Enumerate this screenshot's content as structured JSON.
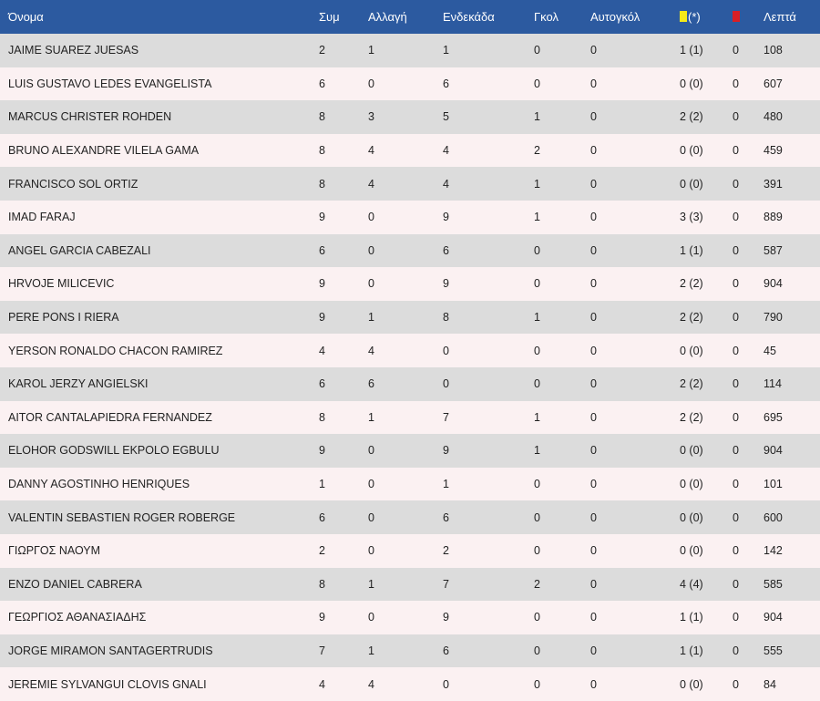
{
  "headers": {
    "name": "Όνομα",
    "apps": "Συμ",
    "subs": "Αλλαγή",
    "starts": "Ενδεκάδα",
    "goals": "Γκολ",
    "own_goals": "Αυτογκόλ",
    "yellow_suffix": "(*)",
    "minutes": "Λεπτά"
  },
  "icons": {
    "yellow": "yellow-card-icon",
    "red": "red-card-icon"
  },
  "colors": {
    "header": "#2c5aa0",
    "row_odd": "#dcdcdc",
    "row_even": "#fbf1f2",
    "yellow": "#f5ea19",
    "red": "#d81f26"
  },
  "players": [
    {
      "name": "JAIME SUAREZ JUESAS",
      "apps": "2",
      "subs": "1",
      "starts": "1",
      "goals": "0",
      "own_goals": "0",
      "yellow": "1 (1)",
      "red": "0",
      "minutes": "108"
    },
    {
      "name": "LUIS GUSTAVO LEDES EVANGELISTA",
      "apps": "6",
      "subs": "0",
      "starts": "6",
      "goals": "0",
      "own_goals": "0",
      "yellow": "0 (0)",
      "red": "0",
      "minutes": "607"
    },
    {
      "name": "MARCUS CHRISTER ROHDEN",
      "apps": "8",
      "subs": "3",
      "starts": "5",
      "goals": "1",
      "own_goals": "0",
      "yellow": "2 (2)",
      "red": "0",
      "minutes": "480"
    },
    {
      "name": "BRUNO ALEXANDRE VILELA GAMA",
      "apps": "8",
      "subs": "4",
      "starts": "4",
      "goals": "2",
      "own_goals": "0",
      "yellow": "0 (0)",
      "red": "0",
      "minutes": "459"
    },
    {
      "name": "FRANCISCO SOL ORTIZ",
      "apps": "8",
      "subs": "4",
      "starts": "4",
      "goals": "1",
      "own_goals": "0",
      "yellow": "0 (0)",
      "red": "0",
      "minutes": "391"
    },
    {
      "name": "IMAD FARAJ",
      "apps": "9",
      "subs": "0",
      "starts": "9",
      "goals": "1",
      "own_goals": "0",
      "yellow": "3 (3)",
      "red": "0",
      "minutes": "889"
    },
    {
      "name": "ANGEL GARCIA CABEZALI",
      "apps": "6",
      "subs": "0",
      "starts": "6",
      "goals": "0",
      "own_goals": "0",
      "yellow": "1 (1)",
      "red": "0",
      "minutes": "587"
    },
    {
      "name": "HRVOJE MILICEVIC",
      "apps": "9",
      "subs": "0",
      "starts": "9",
      "goals": "0",
      "own_goals": "0",
      "yellow": "2 (2)",
      "red": "0",
      "minutes": "904"
    },
    {
      "name": "PERE PONS I RIERA",
      "apps": "9",
      "subs": "1",
      "starts": "8",
      "goals": "1",
      "own_goals": "0",
      "yellow": "2 (2)",
      "red": "0",
      "minutes": "790"
    },
    {
      "name": "YERSON RONALDO CHACON RAMIREZ",
      "apps": "4",
      "subs": "4",
      "starts": "0",
      "goals": "0",
      "own_goals": "0",
      "yellow": "0 (0)",
      "red": "0",
      "minutes": "45"
    },
    {
      "name": "KAROL JERZY ANGIELSKI",
      "apps": "6",
      "subs": "6",
      "starts": "0",
      "goals": "0",
      "own_goals": "0",
      "yellow": "2 (2)",
      "red": "0",
      "minutes": "114"
    },
    {
      "name": "AITOR CANTALAPIEDRA FERNANDEZ",
      "apps": "8",
      "subs": "1",
      "starts": "7",
      "goals": "1",
      "own_goals": "0",
      "yellow": "2 (2)",
      "red": "0",
      "minutes": "695"
    },
    {
      "name": "ELOHOR GODSWILL EKPOLO EGBULU",
      "apps": "9",
      "subs": "0",
      "starts": "9",
      "goals": "1",
      "own_goals": "0",
      "yellow": "0 (0)",
      "red": "0",
      "minutes": "904"
    },
    {
      "name": "DANNY AGOSTINHO HENRIQUES",
      "apps": "1",
      "subs": "0",
      "starts": "1",
      "goals": "0",
      "own_goals": "0",
      "yellow": "0 (0)",
      "red": "0",
      "minutes": "101"
    },
    {
      "name": "VALENTIN SEBASTIEN ROGER ROBERGE",
      "apps": "6",
      "subs": "0",
      "starts": "6",
      "goals": "0",
      "own_goals": "0",
      "yellow": "0 (0)",
      "red": "0",
      "minutes": "600"
    },
    {
      "name": "ΓΙΩΡΓΟΣ ΝΑΟΥΜ",
      "apps": "2",
      "subs": "0",
      "starts": "2",
      "goals": "0",
      "own_goals": "0",
      "yellow": "0 (0)",
      "red": "0",
      "minutes": "142"
    },
    {
      "name": "ENZO DANIEL CABRERA",
      "apps": "8",
      "subs": "1",
      "starts": "7",
      "goals": "2",
      "own_goals": "0",
      "yellow": "4 (4)",
      "red": "0",
      "minutes": "585"
    },
    {
      "name": "ΓΕΩΡΓΙΟΣ ΑΘΑΝΑΣΙΑΔΗΣ",
      "apps": "9",
      "subs": "0",
      "starts": "9",
      "goals": "0",
      "own_goals": "0",
      "yellow": "1 (1)",
      "red": "0",
      "minutes": "904"
    },
    {
      "name": "JORGE MIRAMON SANTAGERTRUDIS",
      "apps": "7",
      "subs": "1",
      "starts": "6",
      "goals": "0",
      "own_goals": "0",
      "yellow": "1 (1)",
      "red": "0",
      "minutes": "555"
    },
    {
      "name": "JEREMIE SYLVANGUI CLOVIS GNALI",
      "apps": "4",
      "subs": "4",
      "starts": "0",
      "goals": "0",
      "own_goals": "0",
      "yellow": "0 (0)",
      "red": "0",
      "minutes": "84"
    }
  ]
}
